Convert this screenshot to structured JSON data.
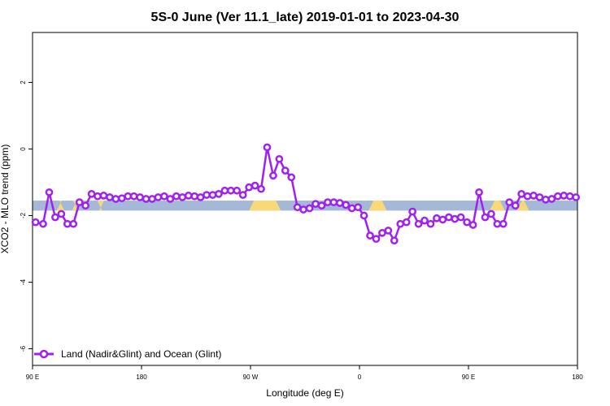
{
  "chart_data": {
    "type": "line",
    "title": "5S-0 June (Ver 11.1_late)   2019-01-01 to 2023-04-30",
    "xlabel": "Longitude (deg E)",
    "ylabel": "XCO2 - MLO trend (ppm)",
    "xlim": [
      90,
      450
    ],
    "ylim": [
      -6.5,
      3.5
    ],
    "x_ticks": [
      {
        "value": 90,
        "label": "90 E"
      },
      {
        "value": 162,
        "label": "180"
      },
      {
        "value": 234,
        "label": "90 W"
      },
      {
        "value": 306,
        "label": "0"
      },
      {
        "value": 378,
        "label": "90 E"
      },
      {
        "value": 450,
        "label": "180"
      }
    ],
    "y_ticks": [
      {
        "value": 2,
        "label": "2"
      },
      {
        "value": 0,
        "label": "0"
      },
      {
        "value": -2,
        "label": "-2"
      },
      {
        "value": -4,
        "label": "-4"
      },
      {
        "value": -6,
        "label": "-6"
      }
    ],
    "grid": false,
    "legend_position": "bottom-left",
    "surface_band": {
      "y_top": -1.55,
      "y_bottom": -1.85,
      "ocean_color": "#a5b8d8",
      "land_color": "#f8d878",
      "land_segments": [
        [
          106,
          111
        ],
        [
          116,
          120
        ],
        [
          134,
          136
        ],
        [
          233,
          254
        ],
        [
          312,
          324
        ],
        [
          392,
          402
        ],
        [
          410,
          418
        ]
      ]
    },
    "series": [
      {
        "name": "Land (Nadir&Glint) and Ocean (Glint)",
        "color": "#a020f0",
        "x": [
          92,
          97,
          101,
          105,
          109,
          113,
          117,
          121,
          125,
          129,
          133,
          137,
          141,
          145,
          149,
          153,
          157,
          161,
          165,
          169,
          173,
          177,
          181,
          185,
          189,
          193,
          197,
          201,
          205,
          209,
          213,
          217,
          221,
          225,
          229,
          233,
          237,
          241,
          245,
          249,
          253,
          257,
          261,
          265,
          269,
          273,
          277,
          281,
          285,
          289,
          293,
          297,
          301,
          305,
          309,
          313,
          317,
          321,
          325,
          329,
          333,
          337,
          341,
          345,
          349,
          353,
          357,
          361,
          365,
          369,
          373,
          377,
          381,
          385,
          389,
          393,
          397,
          401,
          405,
          409,
          413,
          417,
          421,
          425,
          429,
          433,
          437,
          441,
          445,
          449
        ],
        "y": [
          -2.2,
          -2.25,
          -1.3,
          -2.05,
          -1.95,
          -2.25,
          -2.25,
          -1.6,
          -1.7,
          -1.35,
          -1.42,
          -1.4,
          -1.45,
          -1.5,
          -1.48,
          -1.42,
          -1.42,
          -1.45,
          -1.5,
          -1.5,
          -1.45,
          -1.42,
          -1.5,
          -1.42,
          -1.45,
          -1.4,
          -1.42,
          -1.45,
          -1.38,
          -1.38,
          -1.35,
          -1.25,
          -1.25,
          -1.25,
          -1.38,
          -1.15,
          -1.1,
          -1.2,
          0.05,
          -0.8,
          -0.3,
          -0.65,
          -0.85,
          -1.75,
          -1.82,
          -1.78,
          -1.65,
          -1.7,
          -1.6,
          -1.6,
          -1.62,
          -1.68,
          -1.78,
          -1.75,
          -2.0,
          -2.6,
          -2.7,
          -2.52,
          -2.45,
          -2.75,
          -2.25,
          -2.2,
          -1.88,
          -2.25,
          -2.15,
          -2.25,
          -2.08,
          -2.12,
          -2.05,
          -2.1,
          -2.05,
          -2.2,
          -2.28,
          -1.3,
          -2.05,
          -1.95,
          -2.25,
          -2.25,
          -1.6,
          -1.7,
          -1.35,
          -1.42,
          -1.4,
          -1.45,
          -1.52,
          -1.5,
          -1.42,
          -1.4,
          -1.42,
          -1.45
        ]
      }
    ]
  }
}
